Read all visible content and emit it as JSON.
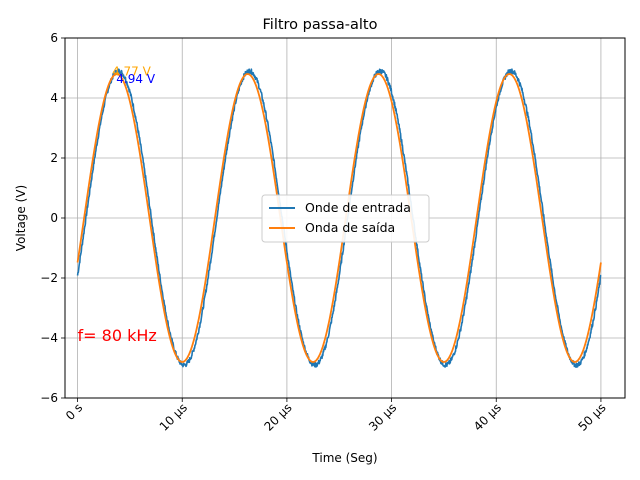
{
  "chart_data": {
    "type": "line",
    "title": "Filtro passa-alto",
    "xlabel": "Time (Seg)",
    "ylabel": "Voltage (V)",
    "xlim": [
      -1.2,
      52.3
    ],
    "ylim": [
      -6,
      6
    ],
    "x_unit": "µs",
    "x_ticks": [
      0,
      10,
      20,
      30,
      40,
      50
    ],
    "x_tick_labels": [
      "0 s",
      "10 µs",
      "20 µs",
      "30 µs",
      "40 µs",
      "50 µs"
    ],
    "y_ticks": [
      -6,
      -4,
      -2,
      0,
      2,
      4,
      6
    ],
    "y_tick_labels": [
      "−6",
      "−4",
      "−2",
      "0",
      "2",
      "4",
      "6"
    ],
    "grid": true,
    "legend_position": "center-right",
    "frequency_khz": 80,
    "series": [
      {
        "name": "Onde de entrada",
        "color": "#1f77b4",
        "amplitude": 4.9,
        "phase_deg": -23,
        "noisy": true,
        "x_range": [
          0,
          50
        ],
        "peak_points": [
          [
            3.9,
            4.94
          ],
          [
            16.0,
            4.94
          ],
          [
            28.0,
            4.94
          ],
          [
            40.0,
            4.94
          ]
        ],
        "trough_points": [
          [
            10.0,
            -4.8
          ],
          [
            22.0,
            -4.8
          ],
          [
            34.0,
            -4.8
          ],
          [
            46.0,
            -4.8
          ]
        ]
      },
      {
        "name": "Onda de saída",
        "color": "#ff7f0e",
        "amplitude": 4.8,
        "phase_deg": -18,
        "noisy": false,
        "x_range": [
          0,
          50
        ],
        "peak_points": [
          [
            3.7,
            4.77
          ],
          [
            15.8,
            4.77
          ],
          [
            27.8,
            4.77
          ],
          [
            39.8,
            4.77
          ]
        ],
        "trough_points": [
          [
            9.8,
            -4.8
          ],
          [
            21.8,
            -4.8
          ],
          [
            33.8,
            -4.8
          ],
          [
            45.8,
            -4.8
          ]
        ]
      }
    ],
    "annotations": [
      {
        "text": "4.77 V",
        "x": 3.3,
        "y": 4.75,
        "color": "#ffa500"
      },
      {
        "text": "4.94 V",
        "x": 3.7,
        "y": 4.5,
        "color": "#0000ff"
      },
      {
        "text": "f= 80 kHz",
        "x": 0,
        "y": -4.1,
        "color": "#ff0000"
      }
    ]
  }
}
